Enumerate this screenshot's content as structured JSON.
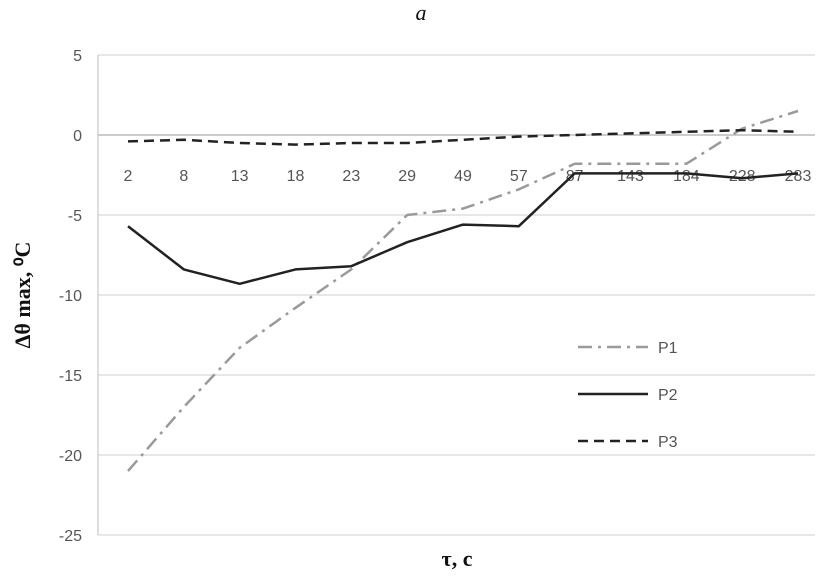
{
  "chart_data": {
    "type": "line",
    "panel_label": "a",
    "xlabel": "τ, c",
    "ylabel": "Δθ max, ⁰C",
    "categories": [
      "2",
      "8",
      "13",
      "18",
      "23",
      "29",
      "49",
      "57",
      "87",
      "143",
      "184",
      "228",
      "283"
    ],
    "ylim": [
      -25,
      5
    ],
    "yticks": [
      5,
      0,
      -5,
      -10,
      -15,
      -20,
      -25
    ],
    "grid": "horizontal",
    "legend_position": "right",
    "series": [
      {
        "name": "P1",
        "style": "dash-dot",
        "color": "#9a9a9a",
        "values": [
          -21.0,
          -17.0,
          -13.3,
          -10.8,
          -8.4,
          -5.0,
          -4.6,
          -3.4,
          -1.8,
          -1.8,
          -1.8,
          0.4,
          1.5
        ]
      },
      {
        "name": "P2",
        "style": "solid",
        "color": "#222222",
        "values": [
          -5.7,
          -8.4,
          -9.3,
          -8.4,
          -8.2,
          -6.7,
          -5.6,
          -5.7,
          -2.4,
          -2.4,
          -2.4,
          -2.7,
          -2.4
        ]
      },
      {
        "name": "P3",
        "style": "dashed",
        "color": "#222222",
        "values": [
          -0.4,
          -0.3,
          -0.5,
          -0.6,
          -0.5,
          -0.5,
          -0.3,
          -0.1,
          0.0,
          0.1,
          0.2,
          0.3,
          0.2
        ]
      }
    ]
  }
}
